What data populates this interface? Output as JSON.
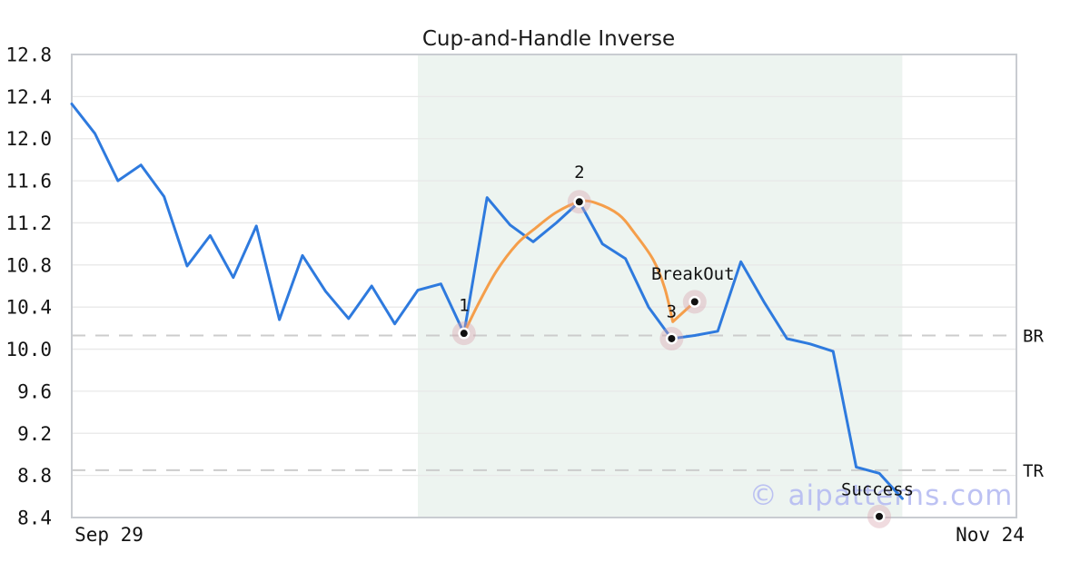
{
  "title": "Cup-and-Handle Inverse",
  "watermark": "© aipatterns.com",
  "chart_data": {
    "type": "line",
    "title": "Cup-and-Handle Inverse",
    "xlabel": "",
    "ylabel": "",
    "grid": true,
    "legend": false,
    "x_axis": {
      "ticks": [
        {
          "label": "Sep 29",
          "index": 1.6
        },
        {
          "label": "Nov 24",
          "index": 39.8
        }
      ],
      "xlim_index": [
        0,
        40.94
      ]
    },
    "y_axis": {
      "ticks": [
        8.4,
        8.8,
        9.2,
        9.6,
        10.0,
        10.4,
        10.8,
        11.2,
        11.6,
        12.0,
        12.4,
        12.8
      ],
      "ylim": [
        8.4,
        12.8
      ]
    },
    "series": [
      {
        "name": "price",
        "color": "#2e7ade",
        "values": [
          12.33,
          12.05,
          11.6,
          11.75,
          11.45,
          10.79,
          11.08,
          10.68,
          11.17,
          10.28,
          10.89,
          10.55,
          10.29,
          10.6,
          10.24,
          10.56,
          10.62,
          10.15,
          11.44,
          11.18,
          11.02,
          11.2,
          11.4,
          11.0,
          10.86,
          10.4,
          10.1,
          10.13,
          10.17,
          10.83,
          10.45,
          10.1,
          10.05,
          9.98,
          8.88,
          8.82,
          8.58
        ]
      }
    ],
    "pattern_overlay": {
      "name": "cup-template",
      "color": "#f59e4a",
      "points": [
        [
          17.0,
          10.15
        ],
        [
          17.6,
          10.42
        ],
        [
          18.4,
          10.74
        ],
        [
          19.3,
          11.0
        ],
        [
          20.1,
          11.15
        ],
        [
          21.0,
          11.3
        ],
        [
          22.0,
          11.4
        ],
        [
          22.7,
          11.39
        ],
        [
          23.7,
          11.28
        ],
        [
          24.4,
          11.1
        ],
        [
          25.2,
          10.85
        ],
        [
          25.7,
          10.58
        ],
        [
          26.05,
          10.26
        ],
        [
          27.0,
          10.45
        ]
      ]
    },
    "levels": [
      {
        "label": "BR",
        "value": 10.13
      },
      {
        "label": "TR",
        "value": 8.85
      }
    ],
    "pattern_region": {
      "start_index": 15,
      "end_index": 36,
      "color": "#edf4f0"
    },
    "annotations": [
      {
        "label": "1",
        "index": 17,
        "value": 10.15,
        "label_offset": [
          0,
          -31
        ]
      },
      {
        "label": "2",
        "index": 22,
        "value": 11.4,
        "label_offset": [
          0,
          -33
        ]
      },
      {
        "label": "3",
        "index": 26,
        "value": 10.1,
        "label_offset": [
          0,
          -30
        ]
      },
      {
        "label": "BreakOut",
        "index": 27,
        "value": 10.45,
        "label_offset": [
          -2,
          -31
        ]
      },
      {
        "label": "Success",
        "index": 35,
        "value": 8.41,
        "label_offset": [
          -2,
          -30
        ]
      }
    ],
    "marker_style": {
      "halo_color": "rgba(216,160,172,0.38)",
      "ring_color": "#ffffff",
      "dot_color": "#111111"
    },
    "style": {
      "grid_color": "#e8e8e8",
      "spine_color": "#c9ccd1",
      "level_dash_color": "#cccccc"
    }
  }
}
